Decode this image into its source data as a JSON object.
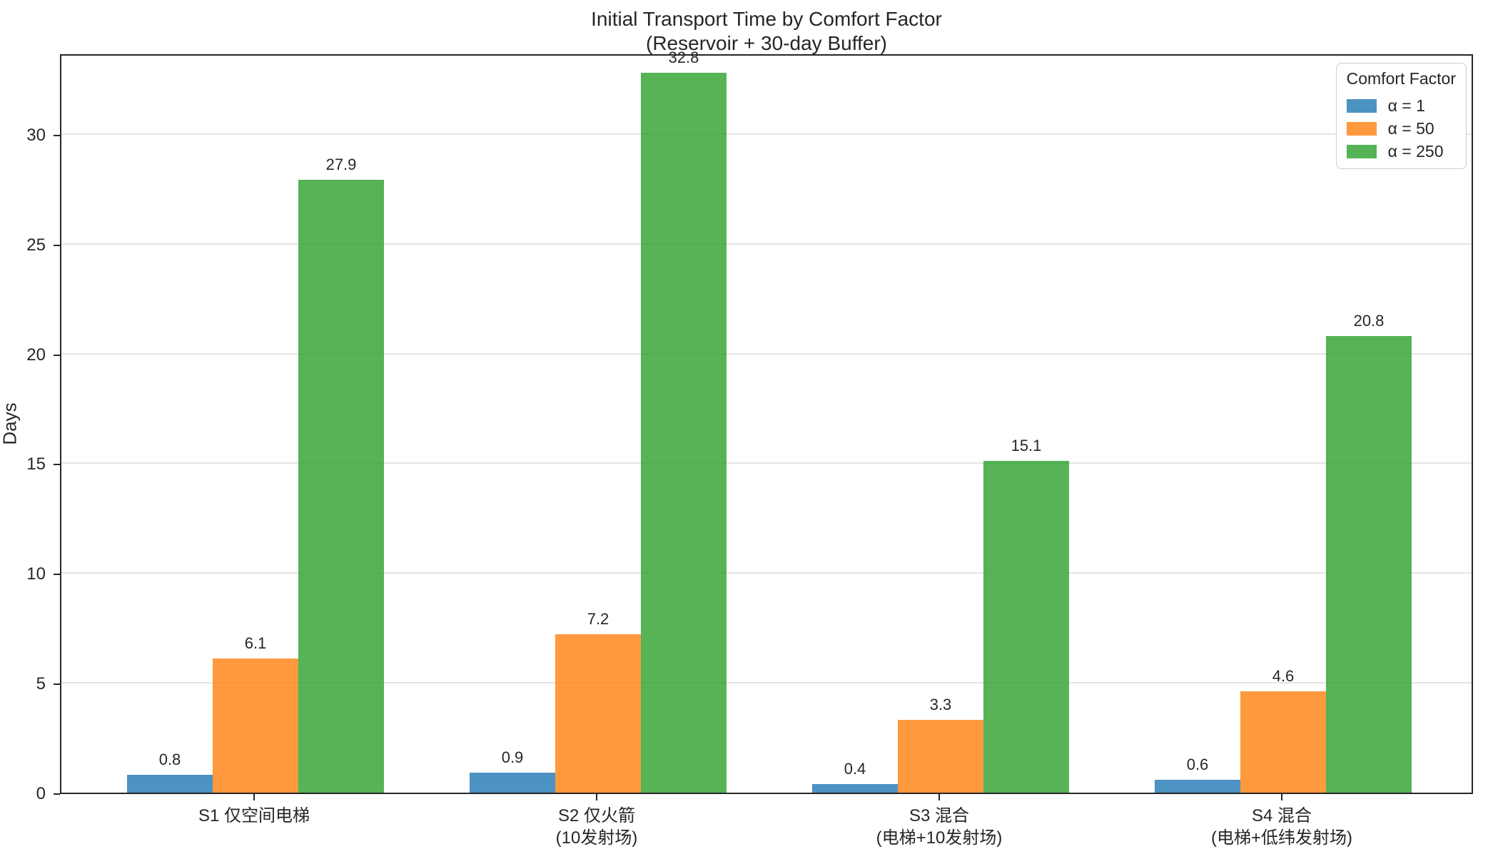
{
  "title": {
    "line1": "Initial Transport Time by Comfort Factor",
    "line2": "(Reservoir + 30-day Buffer)"
  },
  "chart_data": {
    "type": "bar",
    "title": "Initial Transport Time by Comfort Factor\n(Reservoir + 30-day Buffer)",
    "xlabel": "",
    "ylabel": "Days",
    "categories": [
      "S1 仅空间电梯",
      "S2 仅火箭\n(10发射场)",
      "S3 混合\n(电梯+10发射场)",
      "S4 混合\n(电梯+低纬发射场)"
    ],
    "series": [
      {
        "name": "α = 1",
        "color": "#1f77b4",
        "alpha": 0.8,
        "values": [
          0.8,
          0.9,
          0.4,
          0.6
        ]
      },
      {
        "name": "α = 50",
        "color": "#ff7f0e",
        "alpha": 0.8,
        "values": [
          6.1,
          7.2,
          3.3,
          4.6
        ]
      },
      {
        "name": "α = 250",
        "color": "#2ca02c",
        "alpha": 0.8,
        "values": [
          27.9,
          32.8,
          15.1,
          20.8
        ]
      }
    ],
    "bar_value_labels": [
      [
        "0.8",
        "0.9",
        "0.4",
        "0.6"
      ],
      [
        "6.1",
        "7.2",
        "3.3",
        "4.6"
      ],
      [
        "27.9",
        "32.8",
        "15.1",
        "20.8"
      ]
    ],
    "yticks": [
      0,
      5,
      10,
      15,
      20,
      25,
      30
    ],
    "ylim": [
      0,
      33.7
    ],
    "grid": true,
    "legend": {
      "title": "Comfort Factor",
      "position": "upper right",
      "entries": [
        "α = 1",
        "α = 50",
        "α = 250"
      ]
    },
    "colors": {
      "axis": "#262626",
      "grid": "#e4e4e4",
      "background": "#ffffff",
      "text": "#262626",
      "legend_border": "#cccccc"
    }
  }
}
